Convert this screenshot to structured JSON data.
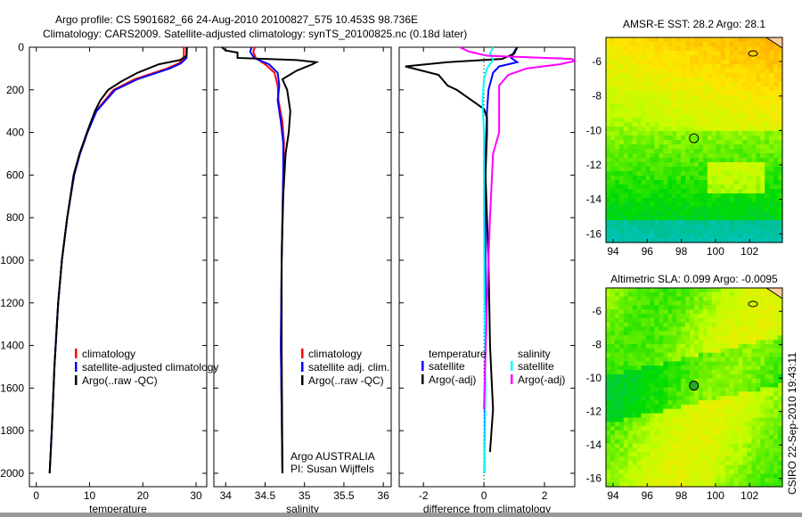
{
  "title": {
    "line1": "Argo profile: CS 5901682_66 24-Aug-2010 20100827_575 10.453S 98.736E",
    "line2": "Climatology: CARS2009. Satellite-adjusted climatology: synTS_20100825.nc (0.18d later)"
  },
  "credit": "CSIRO 22-Sep-2010 19:43:11",
  "colors": {
    "climatology": "#ff0000",
    "satellite": "#0000ff",
    "argo": "#000000",
    "sal_satellite": "#00ffff",
    "sal_argo": "#ff00ff"
  },
  "chart_data": [
    {
      "type": "line",
      "xlabel": "temperature",
      "ylabel": "",
      "xlim": [
        -1.3,
        32
      ],
      "ylim": [
        2063,
        0
      ],
      "xticks": [
        "0",
        "10",
        "20",
        "30"
      ],
      "xtickvals": [
        0,
        10,
        20,
        30
      ],
      "yticks": [
        "0",
        "200",
        "400",
        "600",
        "800",
        "1000",
        "1200",
        "1400",
        "1600",
        "1800",
        "2000"
      ],
      "legend": [
        "climatology",
        "satellite-adjusted climatology",
        "Argo(..raw -QC)"
      ],
      "series": [
        {
          "name": "climatology",
          "color": "#ff0000",
          "depth": [
            0,
            50,
            75,
            100,
            150,
            200,
            300,
            400,
            500,
            600,
            800,
            1000,
            1200,
            1500,
            1800,
            2000
          ],
          "values": [
            27.7,
            27.7,
            26.8,
            24.5,
            18.5,
            14.5,
            11.2,
            9.6,
            8.2,
            7.1,
            5.8,
            4.8,
            4.1,
            3.4,
            2.9,
            2.5
          ]
        },
        {
          "name": "satellite-adjusted climatology",
          "color": "#0000ff",
          "depth": [
            0,
            50,
            75,
            100,
            150,
            200,
            300,
            400,
            500,
            600,
            800,
            1000,
            1200,
            1500,
            1800,
            2000
          ],
          "values": [
            28.3,
            28.2,
            27.2,
            25,
            19,
            14.8,
            11.3,
            9.6,
            8.2,
            7.1,
            5.8,
            4.8,
            4.1,
            3.4,
            2.9,
            2.5
          ]
        },
        {
          "name": "Argo(..raw -QC)",
          "color": "#000000",
          "depth": [
            0,
            40,
            60,
            80,
            120,
            160,
            200,
            250,
            300,
            400,
            500,
            600,
            800,
            1000,
            1200,
            1500,
            1800,
            2000
          ],
          "values": [
            28.2,
            28.2,
            27,
            23,
            19,
            16,
            13.5,
            12,
            11,
            9.5,
            8.1,
            7,
            5.8,
            4.8,
            4.1,
            3.4,
            2.9,
            2.5
          ]
        }
      ]
    },
    {
      "type": "line",
      "xlabel": "salinity",
      "xlim": [
        33.85,
        36.1
      ],
      "ylim": [
        2063,
        0
      ],
      "xticks": [
        "34",
        "34.5",
        "35",
        "35.5",
        "36"
      ],
      "xtickvals": [
        34,
        34.5,
        35,
        35.5,
        36
      ],
      "legend": [
        "climatology",
        "satellite adj. clim.",
        "Argo(..raw -QC)"
      ],
      "annotation": [
        "Argo AUSTRALIA",
        "PI: Susan Wijffels"
      ],
      "series": [
        {
          "name": "climatology",
          "color": "#ff0000",
          "depth": [
            0,
            20,
            50,
            80,
            120,
            180,
            250,
            350,
            450,
            600,
            800,
            1000,
            1400,
            1700,
            2000
          ],
          "values": [
            34.37,
            34.35,
            34.38,
            34.5,
            34.62,
            34.66,
            34.67,
            34.72,
            34.74,
            34.73,
            34.72,
            34.71,
            34.7,
            34.71,
            34.72
          ]
        },
        {
          "name": "satellite adj. clim.",
          "color": "#0000ff",
          "depth": [
            0,
            20,
            50,
            80,
            120,
            180,
            250,
            350,
            450,
            600,
            800,
            1000,
            1400,
            1700,
            2000
          ],
          "values": [
            34.33,
            34.31,
            34.36,
            34.55,
            34.66,
            34.68,
            34.66,
            34.7,
            34.73,
            34.73,
            34.72,
            34.71,
            34.7,
            34.71,
            34.72
          ]
        },
        {
          "name": "Argo(..raw -QC)",
          "color": "#000000",
          "depth": [
            0,
            15,
            25,
            50,
            60,
            70,
            80,
            110,
            150,
            200,
            300,
            400,
            500,
            700,
            1000,
            1400,
            2000
          ],
          "values": [
            33.95,
            34,
            34.15,
            34.15,
            34.9,
            35.15,
            35.1,
            34.9,
            34.72,
            34.78,
            34.82,
            34.8,
            34.76,
            34.73,
            34.71,
            34.71,
            34.72
          ]
        }
      ]
    },
    {
      "type": "line",
      "xlabel": "difference from climatology",
      "xlim": [
        -2.8,
        3
      ],
      "ylim": [
        2063,
        0
      ],
      "xticks": [
        "-2",
        "0",
        "2"
      ],
      "xtickvals": [
        -2,
        0,
        2
      ],
      "legend_titles": [
        "temperature",
        "salinity"
      ],
      "legend": [
        "satellite",
        "Argo(-adj)",
        "satellite",
        "Argo(-adj)"
      ],
      "series": [
        {
          "name": "temperature satellite",
          "color": "#0000ff",
          "depth": [
            0,
            20,
            50,
            70,
            90,
            120,
            200,
            300,
            500,
            800,
            1200,
            1600,
            2000
          ],
          "values": [
            1.1,
            1.0,
            0.9,
            1.1,
            0.5,
            0.3,
            0.15,
            0.1,
            0.05,
            0.05,
            0.05,
            0.03,
            0.02
          ]
        },
        {
          "name": "temperature Argo(-adj)",
          "color": "#000000",
          "depth": [
            0,
            30,
            55,
            70,
            90,
            130,
            180,
            200,
            240,
            290,
            330,
            400,
            600,
            1000,
            1400,
            1700,
            1900
          ],
          "values": [
            1.1,
            1.0,
            0.6,
            -1.2,
            -2.6,
            -1.5,
            -1.2,
            -0.9,
            -0.5,
            0,
            0.1,
            0.1,
            0.05,
            0.15,
            0.2,
            0.3,
            0.2
          ]
        },
        {
          "name": "salinity satellite",
          "color": "#00ffff",
          "depth": [
            0,
            30,
            60,
            100,
            150,
            250,
            400,
            800,
            1200,
            1600,
            2000
          ],
          "values": [
            0.3,
            0.2,
            0.3,
            0.1,
            0,
            -0.05,
            0,
            0,
            0.02,
            0.05,
            0.02
          ]
        },
        {
          "name": "salinity Argo(-adj)",
          "color": "#ff00ff",
          "depth": [
            0,
            20,
            40,
            55,
            65,
            80,
            100,
            130,
            180,
            300,
            400,
            500,
            800,
            1200,
            1700
          ],
          "values": [
            -0.8,
            -0.5,
            0.1,
            2.9,
            3.0,
            2.5,
            1.4,
            0.8,
            0.5,
            0.5,
            0.5,
            0.3,
            0.2,
            0.1,
            0
          ]
        }
      ]
    },
    {
      "type": "heatmap",
      "title": "AMSR-E SST: 28.2 Argo: 28.1",
      "xticks": [
        "94",
        "96",
        "98",
        "100",
        "102"
      ],
      "yticks": [
        "-6",
        "-8",
        "-10",
        "-12",
        "-14",
        "-16"
      ],
      "marker": {
        "lon": 98.736,
        "lat": -10.453
      }
    },
    {
      "type": "heatmap",
      "title": "Altimetric SLA: 0.099 Argo: -0.0095",
      "xticks": [
        "94",
        "96",
        "98",
        "100",
        "102"
      ],
      "yticks": [
        "-6",
        "-8",
        "-10",
        "-12",
        "-14",
        "-16"
      ],
      "marker": {
        "lon": 98.736,
        "lat": -10.453
      }
    }
  ]
}
